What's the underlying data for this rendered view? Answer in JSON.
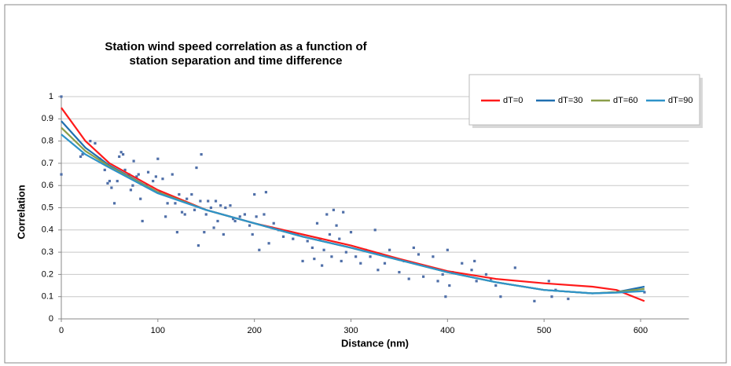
{
  "chart_data": {
    "type": "scatter",
    "title": "Station wind speed correlation as a function of station separation and time difference",
    "x_label": "Distance (nm)",
    "y_label": "Correlation",
    "xlim": [
      0,
      650
    ],
    "ylim": [
      0,
      1
    ],
    "xticks": [
      0,
      100,
      200,
      300,
      400,
      500,
      600
    ],
    "yticks": [
      0,
      0.1,
      0.2,
      0.3,
      0.4,
      0.5,
      0.6,
      0.7,
      0.8,
      0.9,
      1
    ],
    "grid": true,
    "legend": "top-right",
    "points": {
      "color": "#4f6fa8",
      "x": [
        0,
        0,
        20,
        22,
        30,
        35,
        40,
        45,
        48,
        50,
        52,
        55,
        58,
        60,
        62,
        64,
        66,
        70,
        72,
        74,
        75,
        78,
        80,
        82,
        84,
        88,
        90,
        95,
        98,
        100,
        102,
        105,
        108,
        110,
        115,
        118,
        120,
        122,
        125,
        128,
        130,
        135,
        138,
        140,
        142,
        144,
        145,
        148,
        150,
        152,
        155,
        158,
        160,
        162,
        165,
        168,
        170,
        175,
        178,
        180,
        185,
        190,
        195,
        198,
        200,
        202,
        205,
        210,
        212,
        215,
        218,
        220,
        225,
        230,
        240,
        245,
        250,
        255,
        260,
        262,
        265,
        268,
        270,
        272,
        275,
        278,
        280,
        282,
        285,
        288,
        290,
        292,
        295,
        300,
        305,
        310,
        315,
        320,
        325,
        328,
        335,
        340,
        350,
        355,
        360,
        365,
        370,
        375,
        385,
        390,
        395,
        398,
        400,
        402,
        405,
        415,
        425,
        428,
        430,
        440,
        445,
        450,
        455,
        470,
        490,
        505,
        508,
        512,
        525,
        604
      ],
      "y": [
        1.0,
        0.65,
        0.73,
        0.74,
        0.8,
        0.79,
        0.72,
        0.67,
        0.61,
        0.62,
        0.59,
        0.52,
        0.62,
        0.73,
        0.75,
        0.74,
        0.67,
        0.65,
        0.58,
        0.6,
        0.71,
        0.64,
        0.65,
        0.54,
        0.44,
        0.6,
        0.66,
        0.62,
        0.64,
        0.72,
        0.57,
        0.63,
        0.46,
        0.52,
        0.65,
        0.52,
        0.39,
        0.56,
        0.48,
        0.47,
        0.54,
        0.56,
        0.49,
        0.68,
        0.33,
        0.53,
        0.74,
        0.39,
        0.47,
        0.53,
        0.5,
        0.41,
        0.53,
        0.44,
        0.51,
        0.38,
        0.5,
        0.51,
        0.45,
        0.44,
        0.46,
        0.47,
        0.42,
        0.38,
        0.56,
        0.46,
        0.31,
        0.47,
        0.57,
        0.34,
        0.41,
        0.43,
        0.4,
        0.37,
        0.36,
        0.38,
        0.26,
        0.35,
        0.32,
        0.27,
        0.43,
        0.36,
        0.24,
        0.31,
        0.47,
        0.38,
        0.28,
        0.49,
        0.42,
        0.36,
        0.26,
        0.48,
        0.3,
        0.39,
        0.28,
        0.25,
        0.31,
        0.28,
        0.4,
        0.22,
        0.25,
        0.31,
        0.21,
        0.26,
        0.18,
        0.32,
        0.29,
        0.19,
        0.28,
        0.17,
        0.2,
        0.1,
        0.31,
        0.15,
        0.21,
        0.25,
        0.22,
        0.26,
        0.17,
        0.2,
        0.18,
        0.15,
        0.1,
        0.23,
        0.08,
        0.17,
        0.1,
        0.13,
        0.09,
        0.12
      ]
    },
    "x": [
      0,
      25,
      50,
      100,
      150,
      200,
      250,
      300,
      350,
      400,
      450,
      500,
      550,
      575,
      604
    ],
    "series": [
      {
        "name": "dT=0",
        "color": "#ff1a1a",
        "values": [
          0.95,
          0.8,
          0.7,
          0.58,
          0.49,
          0.43,
          0.38,
          0.33,
          0.27,
          0.215,
          0.18,
          0.16,
          0.145,
          0.13,
          0.08
        ]
      },
      {
        "name": "dT=30",
        "color": "#1f6fb0",
        "values": [
          0.89,
          0.77,
          0.69,
          0.57,
          0.49,
          0.43,
          0.37,
          0.32,
          0.265,
          0.21,
          0.165,
          0.13,
          0.115,
          0.12,
          0.145
        ]
      },
      {
        "name": "dT=60",
        "color": "#8a9e4a",
        "values": [
          0.86,
          0.755,
          0.685,
          0.57,
          0.49,
          0.43,
          0.37,
          0.32,
          0.265,
          0.21,
          0.165,
          0.13,
          0.115,
          0.12,
          0.135
        ]
      },
      {
        "name": "dT=90",
        "color": "#2e93c9",
        "values": [
          0.83,
          0.74,
          0.68,
          0.565,
          0.49,
          0.43,
          0.37,
          0.32,
          0.265,
          0.21,
          0.165,
          0.13,
          0.115,
          0.118,
          0.125
        ]
      }
    ]
  }
}
